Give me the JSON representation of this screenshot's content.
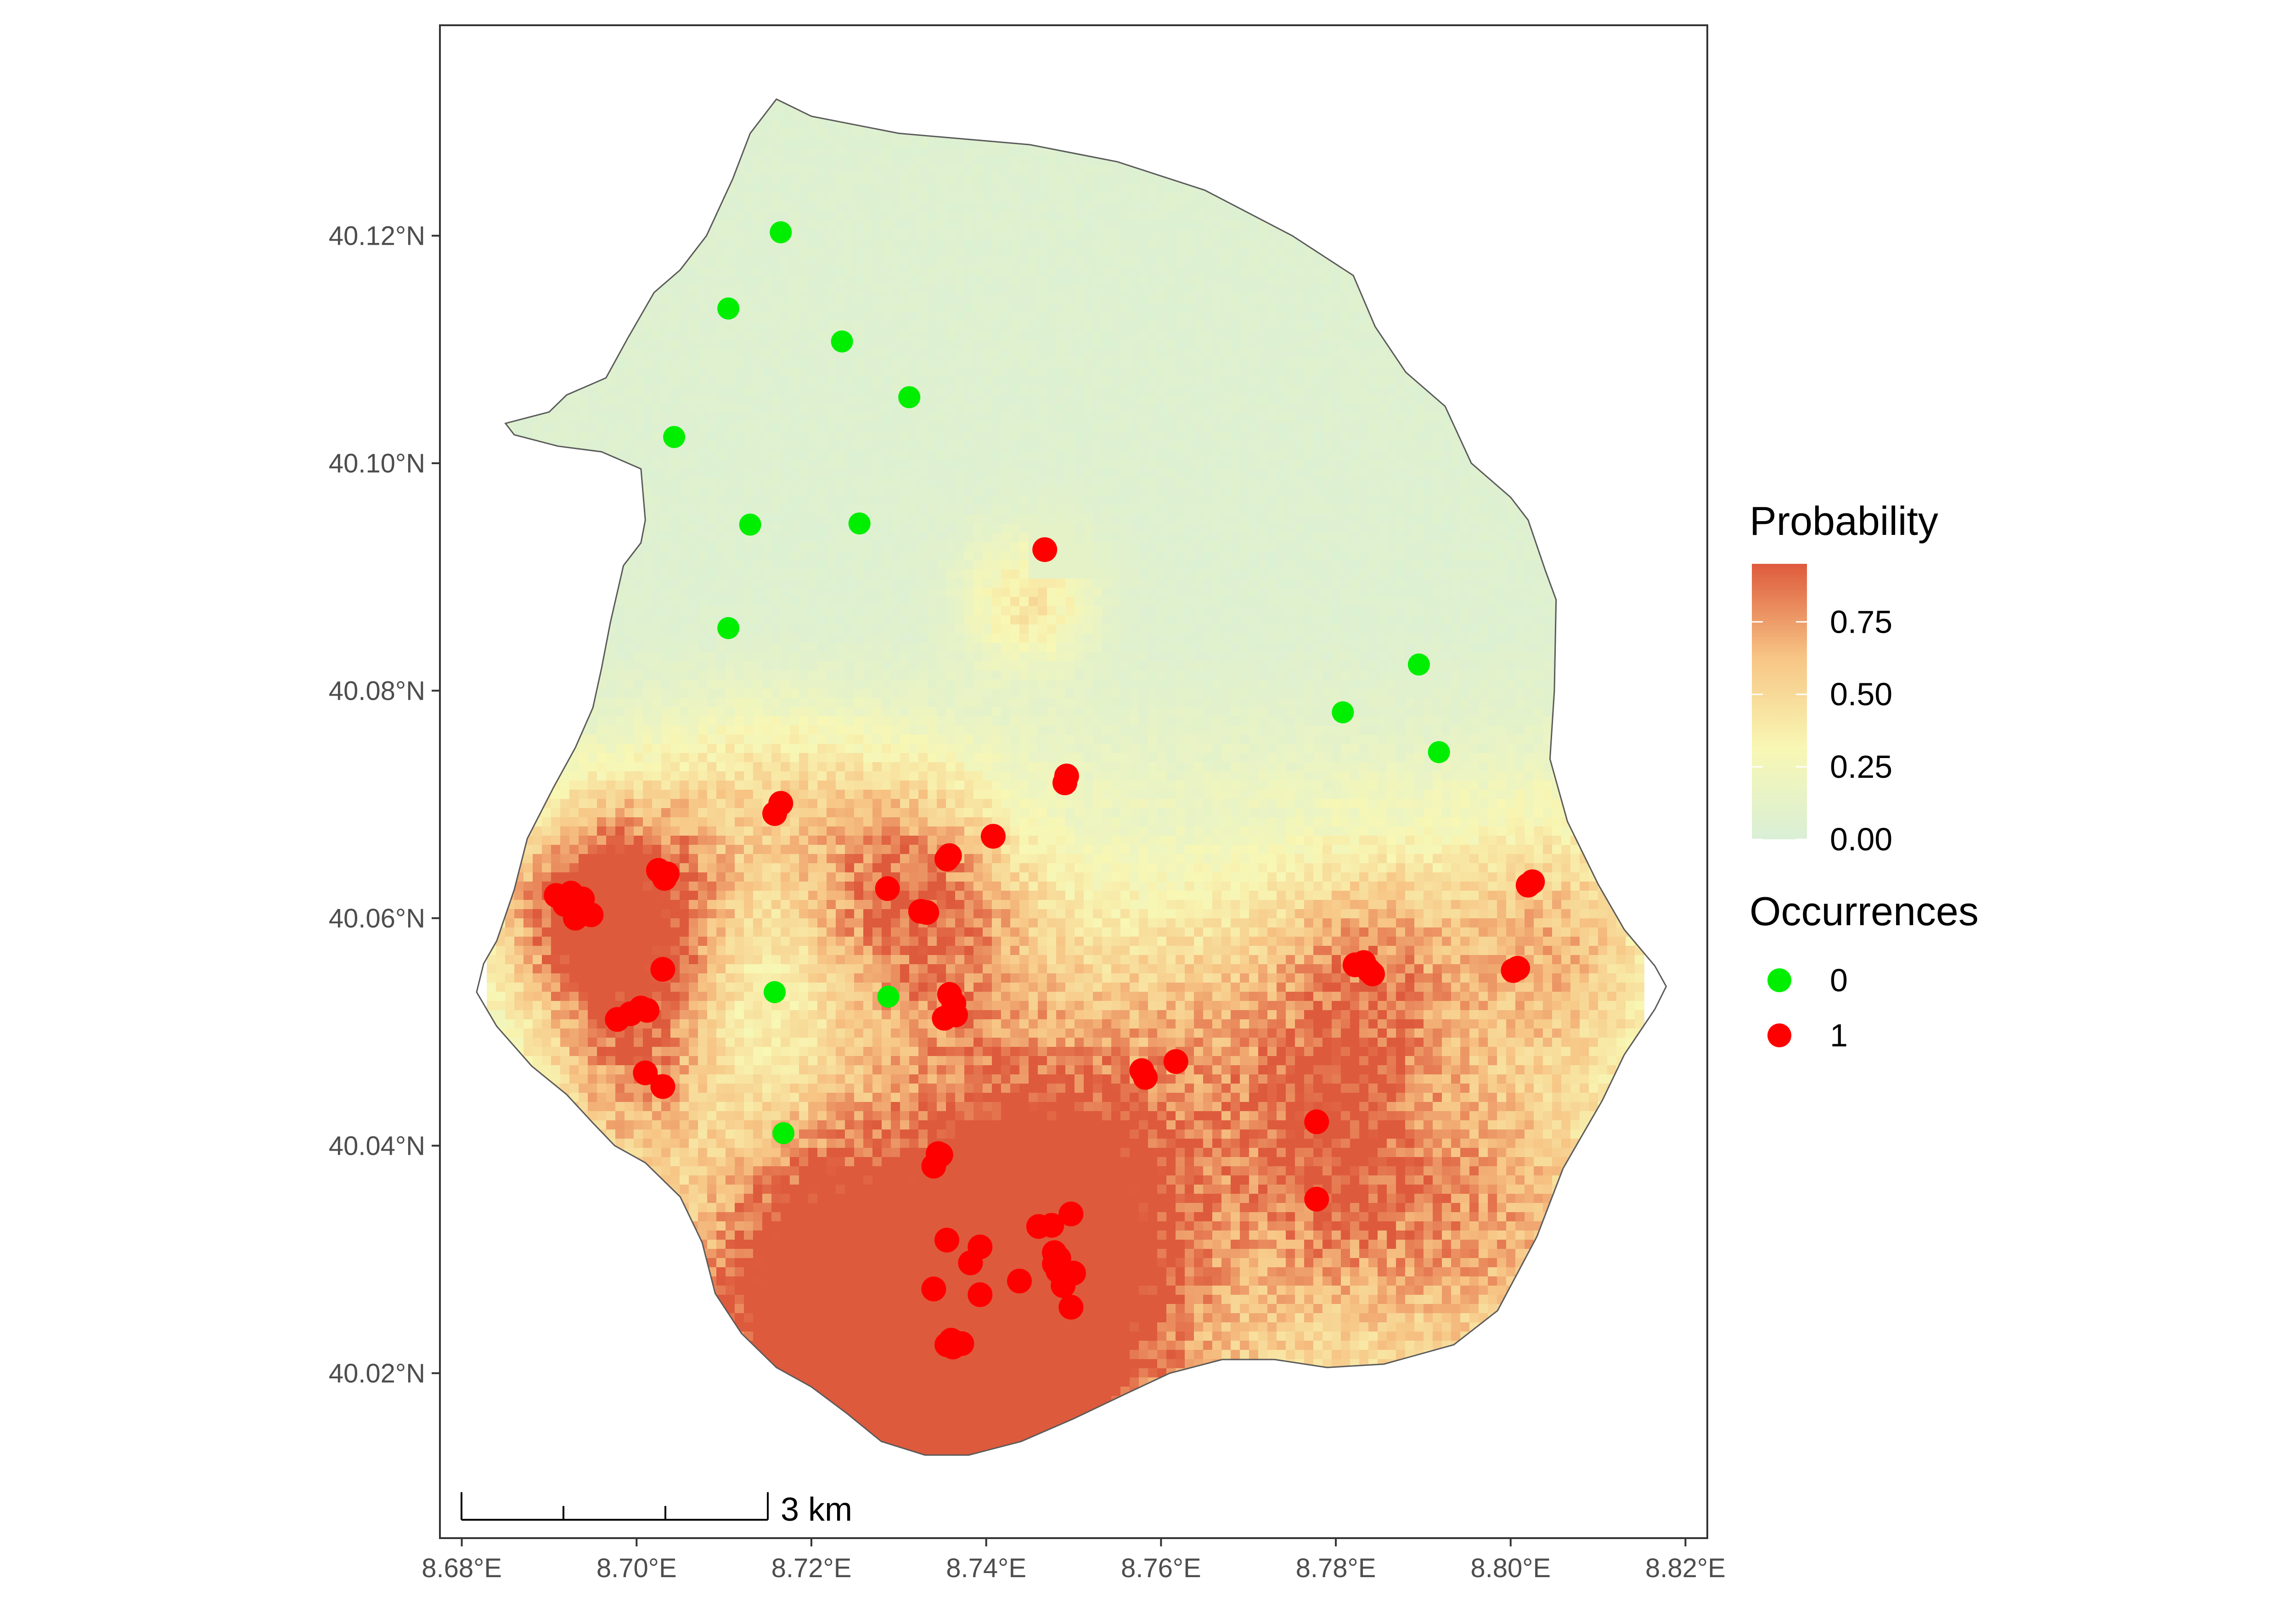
{
  "chart_data": {
    "type": "scatter",
    "subtype": "choropleth-raster-map",
    "x_axis": {
      "ticks": [
        8.68,
        8.7,
        8.72,
        8.74,
        8.76,
        8.78,
        8.8,
        8.82
      ],
      "tick_labels": [
        "8.68°E",
        "8.70°E",
        "8.72°E",
        "8.74°E",
        "8.76°E",
        "8.78°E",
        "8.80°E",
        "8.82°E"
      ],
      "lim": [
        8.6775,
        8.8225
      ]
    },
    "y_axis": {
      "ticks": [
        40.02,
        40.04,
        40.06,
        40.08,
        40.1,
        40.12
      ],
      "tick_labels": [
        "40.02°N",
        "40.04°N",
        "40.06°N",
        "40.08°N",
        "40.10°N",
        "40.12°N"
      ],
      "lim": [
        40.0055,
        40.1385
      ]
    },
    "grid": false,
    "legend": {
      "placement": "right",
      "probability": {
        "title": "Probability",
        "ticks": [
          0.0,
          0.25,
          0.5,
          0.75
        ],
        "tick_labels": [
          "0.00",
          "0.25",
          "0.50",
          "0.75"
        ],
        "range": [
          0,
          0.95
        ],
        "colors": [
          "#d9efd6",
          "#f8f7b4",
          "#f7c585",
          "#de5a3c"
        ]
      },
      "occurrences": {
        "title": "Occurrences",
        "entries": [
          {
            "label": "0",
            "color": "#00ee00"
          },
          {
            "label": "1",
            "color": "#ff0000"
          }
        ]
      }
    },
    "scale_bar": {
      "label": "3 km",
      "length_km": 3
    },
    "occurrences_absent": [
      [
        8.7165,
        40.1203
      ],
      [
        8.7105,
        40.1136
      ],
      [
        8.7235,
        40.1107
      ],
      [
        8.7312,
        40.1058
      ],
      [
        8.7043,
        40.1023
      ],
      [
        8.713,
        40.0946
      ],
      [
        8.7255,
        40.0947
      ],
      [
        8.7105,
        40.0855
      ],
      [
        8.7895,
        40.0823
      ],
      [
        8.7808,
        40.0781
      ],
      [
        8.7918,
        40.0746
      ],
      [
        8.7158,
        40.0535
      ],
      [
        8.7288,
        40.0531
      ],
      [
        8.7168,
        40.0411
      ]
    ],
    "occurrences_present": [
      [
        8.7467,
        40.0924
      ],
      [
        8.7492,
        40.0725
      ],
      [
        8.749,
        40.0719
      ],
      [
        8.7165,
        40.0701
      ],
      [
        8.7158,
        40.0692
      ],
      [
        8.7408,
        40.0672
      ],
      [
        8.7358,
        40.0655
      ],
      [
        8.7355,
        40.0652
      ],
      [
        8.7287,
        40.0626
      ],
      [
        8.7325,
        40.0606
      ],
      [
        8.7332,
        40.0605
      ],
      [
        8.7025,
        40.0642
      ],
      [
        8.7032,
        40.0635
      ],
      [
        8.7035,
        40.0639
      ],
      [
        8.6908,
        40.062
      ],
      [
        8.6925,
        40.0622
      ],
      [
        8.6938,
        40.0617
      ],
      [
        8.6948,
        40.0603
      ],
      [
        8.693,
        40.06
      ],
      [
        8.6918,
        40.0612
      ],
      [
        8.703,
        40.0555
      ],
      [
        8.7005,
        40.0521
      ],
      [
        8.7012,
        40.0519
      ],
      [
        8.6978,
        40.0511
      ],
      [
        8.6993,
        40.0516
      ],
      [
        8.7358,
        40.0533
      ],
      [
        8.7363,
        40.0525
      ],
      [
        8.7365,
        40.0515
      ],
      [
        8.7352,
        40.0512
      ],
      [
        8.701,
        40.0464
      ],
      [
        8.703,
        40.0452
      ],
      [
        8.7578,
        40.0466
      ],
      [
        8.7582,
        40.046
      ],
      [
        8.7617,
        40.0474
      ],
      [
        8.7345,
        40.0393
      ],
      [
        8.734,
        40.0382
      ],
      [
        8.7348,
        40.0392
      ],
      [
        8.7778,
        40.0421
      ],
      [
        8.7778,
        40.0353
      ],
      [
        8.8025,
        40.0632
      ],
      [
        8.802,
        40.0629
      ],
      [
        8.7822,
        40.0559
      ],
      [
        8.7832,
        40.0561
      ],
      [
        8.7842,
        40.0551
      ],
      [
        8.7838,
        40.0554
      ],
      [
        8.8003,
        40.0554
      ],
      [
        8.8008,
        40.0556
      ],
      [
        8.7355,
        40.0317
      ],
      [
        8.7393,
        40.0311
      ],
      [
        8.7382,
        40.0297
      ],
      [
        8.734,
        40.0274
      ],
      [
        8.7393,
        40.0269
      ],
      [
        8.7438,
        40.0281
      ],
      [
        8.746,
        40.0329
      ],
      [
        8.7475,
        40.033
      ],
      [
        8.7497,
        40.034
      ],
      [
        8.7478,
        40.0306
      ],
      [
        8.7483,
        40.0301
      ],
      [
        8.7478,
        40.0296
      ],
      [
        8.75,
        40.0288
      ],
      [
        8.7482,
        40.029
      ],
      [
        8.7488,
        40.0277
      ],
      [
        8.7497,
        40.0258
      ],
      [
        8.7355,
        40.0225
      ],
      [
        8.7362,
        40.0223
      ],
      [
        8.7372,
        40.0226
      ],
      [
        8.736,
        40.0229
      ]
    ],
    "probability_hotspots": [
      {
        "lon": 8.74,
        "lat": 40.027,
        "sx": 0.014,
        "sy": 0.01,
        "amp": 0.92
      },
      {
        "lon": 8.73,
        "lat": 40.024,
        "sx": 0.012,
        "sy": 0.007,
        "amp": 0.75
      },
      {
        "lon": 8.747,
        "lat": 40.033,
        "sx": 0.008,
        "sy": 0.009,
        "amp": 0.7
      },
      {
        "lon": 8.72,
        "lat": 40.03,
        "sx": 0.008,
        "sy": 0.008,
        "amp": 0.55
      },
      {
        "lon": 8.693,
        "lat": 40.061,
        "sx": 0.006,
        "sy": 0.006,
        "amp": 0.8
      },
      {
        "lon": 8.7,
        "lat": 40.05,
        "sx": 0.006,
        "sy": 0.008,
        "amp": 0.6
      },
      {
        "lon": 8.703,
        "lat": 40.062,
        "sx": 0.006,
        "sy": 0.006,
        "amp": 0.55
      },
      {
        "lon": 8.735,
        "lat": 40.055,
        "sx": 0.01,
        "sy": 0.01,
        "amp": 0.45
      },
      {
        "lon": 8.73,
        "lat": 40.063,
        "sx": 0.008,
        "sy": 0.006,
        "amp": 0.45
      },
      {
        "lon": 8.765,
        "lat": 40.045,
        "sx": 0.012,
        "sy": 0.012,
        "amp": 0.45
      },
      {
        "lon": 8.785,
        "lat": 40.055,
        "sx": 0.008,
        "sy": 0.008,
        "amp": 0.5
      },
      {
        "lon": 8.795,
        "lat": 40.035,
        "sx": 0.01,
        "sy": 0.008,
        "amp": 0.42
      },
      {
        "lon": 8.805,
        "lat": 40.058,
        "sx": 0.008,
        "sy": 0.008,
        "amp": 0.45
      },
      {
        "lon": 8.78,
        "lat": 40.04,
        "sx": 0.006,
        "sy": 0.008,
        "amp": 0.4
      },
      {
        "lon": 8.745,
        "lat": 40.088,
        "sx": 0.005,
        "sy": 0.004,
        "amp": 0.35
      },
      {
        "lon": 8.715,
        "lat": 40.07,
        "sx": 0.01,
        "sy": 0.006,
        "amp": 0.3
      },
      {
        "lon": 8.735,
        "lat": 40.018,
        "sx": 0.01,
        "sy": 0.004,
        "amp": 0.55
      }
    ],
    "boundary": [
      [
        8.716,
        40.132
      ],
      [
        8.72,
        40.1305
      ],
      [
        8.73,
        40.129
      ],
      [
        8.745,
        40.128
      ],
      [
        8.755,
        40.1265
      ],
      [
        8.765,
        40.124
      ],
      [
        8.775,
        40.12
      ],
      [
        8.782,
        40.1165
      ],
      [
        8.7845,
        40.112
      ],
      [
        8.788,
        40.108
      ],
      [
        8.7925,
        40.105
      ],
      [
        8.7955,
        40.1
      ],
      [
        8.8,
        40.097
      ],
      [
        8.802,
        40.095
      ],
      [
        8.804,
        40.0905
      ],
      [
        8.8052,
        40.088
      ],
      [
        8.805,
        40.08
      ],
      [
        8.8045,
        40.074
      ],
      [
        8.8065,
        40.0685
      ],
      [
        8.81,
        40.063
      ],
      [
        8.813,
        40.059
      ],
      [
        8.8165,
        40.0558
      ],
      [
        8.8178,
        40.054
      ],
      [
        8.8165,
        40.052
      ],
      [
        8.813,
        40.048
      ],
      [
        8.8105,
        40.044
      ],
      [
        8.806,
        40.038
      ],
      [
        8.803,
        40.032
      ],
      [
        8.7985,
        40.0255
      ],
      [
        8.7935,
        40.0225
      ],
      [
        8.7855,
        40.0208
      ],
      [
        8.779,
        40.0205
      ],
      [
        8.773,
        40.0212
      ],
      [
        8.767,
        40.0212
      ],
      [
        8.761,
        40.02
      ],
      [
        8.756,
        40.0182
      ],
      [
        8.75,
        40.016
      ],
      [
        8.744,
        40.014
      ],
      [
        8.738,
        40.0128
      ],
      [
        8.733,
        40.0128
      ],
      [
        8.728,
        40.014
      ],
      [
        8.724,
        40.0165
      ],
      [
        8.72,
        40.0188
      ],
      [
        8.716,
        40.0205
      ],
      [
        8.712,
        40.0235
      ],
      [
        8.709,
        40.027
      ],
      [
        8.7075,
        40.0315
      ],
      [
        8.705,
        40.0355
      ],
      [
        8.701,
        40.0385
      ],
      [
        8.6975,
        40.04
      ],
      [
        8.695,
        40.042
      ],
      [
        8.692,
        40.0445
      ],
      [
        8.688,
        40.047
      ],
      [
        8.684,
        40.0505
      ],
      [
        8.6817,
        40.0535
      ],
      [
        8.6825,
        40.056
      ],
      [
        8.684,
        40.058
      ],
      [
        8.686,
        40.0625
      ],
      [
        8.6875,
        40.067
      ],
      [
        8.6905,
        40.0715
      ],
      [
        8.693,
        40.075
      ],
      [
        8.695,
        40.0785
      ],
      [
        8.696,
        40.082
      ],
      [
        8.697,
        40.086
      ],
      [
        8.6985,
        40.091
      ],
      [
        8.7005,
        40.093
      ],
      [
        8.701,
        40.095
      ],
      [
        8.7005,
        40.0995
      ],
      [
        8.696,
        40.101
      ],
      [
        8.691,
        40.1015
      ],
      [
        8.686,
        40.1025
      ],
      [
        8.685,
        40.1035
      ],
      [
        8.69,
        40.1045
      ],
      [
        8.692,
        40.106
      ],
      [
        8.6965,
        40.1075
      ],
      [
        8.699,
        40.111
      ],
      [
        8.702,
        40.115
      ],
      [
        8.705,
        40.117
      ],
      [
        8.708,
        40.12
      ],
      [
        8.711,
        40.125
      ],
      [
        8.713,
        40.129
      ],
      [
        8.716,
        40.132
      ]
    ]
  }
}
